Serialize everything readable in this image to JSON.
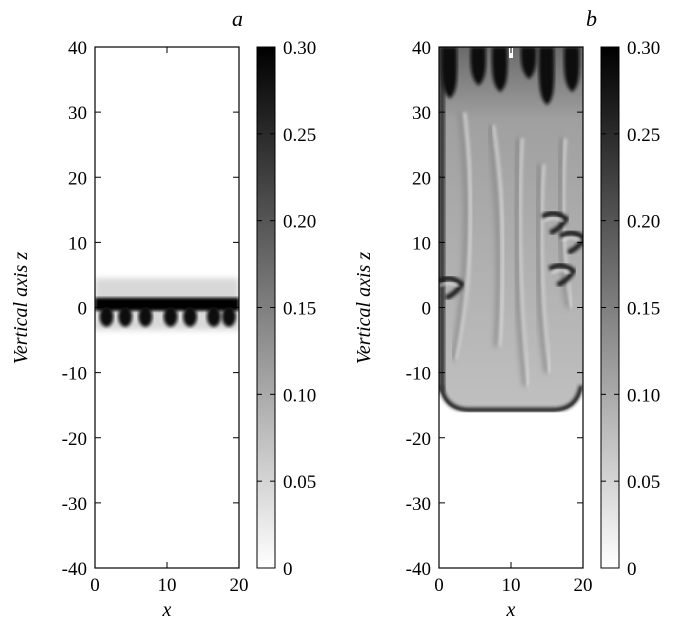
{
  "chart_data": [
    {
      "panel_label": "a",
      "type": "heatmap",
      "xlabel": "x",
      "ylabel": "Vertical axis z",
      "xlim": [
        0,
        20
      ],
      "ylim": [
        -40,
        40
      ],
      "x_ticks": [
        0,
        10,
        20
      ],
      "y_ticks": [
        -40,
        -30,
        -20,
        -10,
        0,
        10,
        20,
        30,
        40
      ],
      "colorbar": {
        "range": [
          0,
          0.3
        ],
        "ticks": [
          "0",
          "0.05",
          "0.10",
          "0.15",
          "0.20",
          "0.25",
          "0.30"
        ],
        "colormap": "white-to-black (grayscale)"
      },
      "field_description": "Dense dark layer concentrated near z = 0 with small plume lobes extending down to about z = -3",
      "field": {
        "layer_top_z": 1.5,
        "layer_bottom_z": -0.5,
        "lobe_centers_x": [
          1.6,
          4.2,
          7.0,
          10.5,
          13.2,
          16.5,
          18.6
        ],
        "lobe_depth_z": -2.8
      },
      "colors": {
        "max": "#000000",
        "min": "#ffffff"
      }
    },
    {
      "panel_label": "b",
      "type": "heatmap",
      "xlabel": "x",
      "ylabel": "Vertical axis z",
      "xlim": [
        0,
        20
      ],
      "ylim": [
        -40,
        40
      ],
      "x_ticks": [
        0,
        10,
        20
      ],
      "y_ticks": [
        -40,
        -30,
        -20,
        -10,
        0,
        10,
        20,
        30,
        40
      ],
      "colorbar": {
        "range": [
          0,
          0.3
        ],
        "ticks": [
          "0",
          "0.05",
          "0.10",
          "0.15",
          "0.20",
          "0.25",
          "0.30"
        ],
        "colormap": "white-to-black (grayscale)"
      },
      "field_description": "Turbulent mixing zone filling z from about -16 to 40 with medium-gray background, dark finger-like plumes near the top and along the sides, dark boundary at the bottom front",
      "field": {
        "mixing_bottom_z": -16,
        "mixing_top_z": 40,
        "plumes_top": [
          {
            "x": 1.5,
            "z_tip": 33
          },
          {
            "x": 5.5,
            "z_tip": 35
          },
          {
            "x": 8.5,
            "z_tip": 34
          },
          {
            "x": 12.5,
            "z_tip": 36
          },
          {
            "x": 15.0,
            "z_tip": 32
          },
          {
            "x": 18.5,
            "z_tip": 34
          }
        ],
        "side_features": [
          {
            "x": 16.0,
            "z": 13
          },
          {
            "x": 18.5,
            "z": 10
          },
          {
            "x": 1.5,
            "z": 3
          },
          {
            "x": 17.0,
            "z": 5
          }
        ]
      },
      "colors": {
        "max": "#000000",
        "min": "#ffffff"
      }
    }
  ]
}
